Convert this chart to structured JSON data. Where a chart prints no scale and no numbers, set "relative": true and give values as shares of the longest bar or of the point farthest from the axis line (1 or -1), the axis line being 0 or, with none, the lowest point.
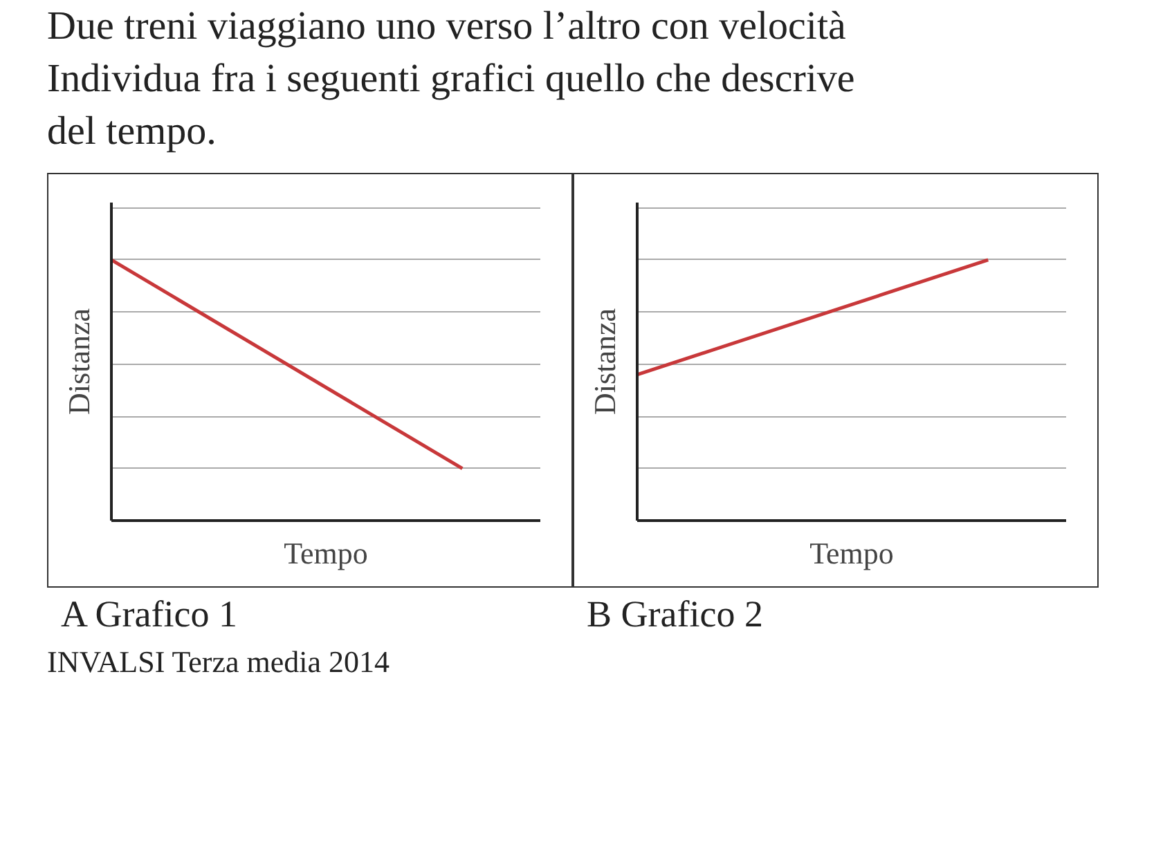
{
  "chart_data": [
    {
      "type": "line",
      "title": "Due treni viaggiano uno verso l’altro con velocità\nIndividua fra i seguenti grafici quello che descrive\ndel tempo.",
      "xlabel": "Tempo",
      "ylabel": "Distanza",
      "categories": [
        null,
        null
      ],
      "relative": true,
      "grid": true,
      "marker": "none",
      "line_style": "solid",
      "series": [
        {
          "color": "#c8383a",
          "values": [
            1,
            0.2
          ]
        }
      ],
      "annotations": [
        "A Grafico 1",
        "INVALSI Terza media 2014"
      ]
    },
    {
      "type": "line",
      "xlabel": "Tempo",
      "ylabel": "Distanza",
      "categories": [
        null,
        null
      ],
      "relative": true,
      "grid": true,
      "marker": "none",
      "line_style": "solid",
      "series": [
        {
          "color": "#c8383a",
          "values": [
            0.56,
            1
          ]
        }
      ],
      "annotations": [
        "B Grafico 2"
      ]
    }
  ]
}
